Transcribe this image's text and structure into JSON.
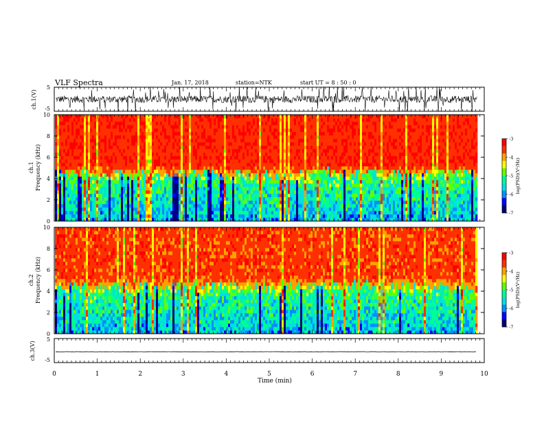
{
  "header": {
    "title": "VLF Spectra",
    "date": "Jan. 17, 2018",
    "station": "station=NTK",
    "start": "start UT = 8 : 50 : 0"
  },
  "colors": {
    "colormap": [
      "#00007a",
      "#0000ff",
      "#0090ff",
      "#00e0e0",
      "#00ff90",
      "#60ff00",
      "#ffff00",
      "#ffa000",
      "#ff3000",
      "#ff0000"
    ],
    "trace": "#000000"
  },
  "chart_data": [
    {
      "type": "line",
      "panel": "ch1-waveform",
      "ylabel": "ch.1(V)",
      "ylim": [
        -5,
        5
      ],
      "yticks": [
        "5",
        "-5"
      ],
      "description_values": {
        "baseline_V": 0.0,
        "noise_amplitude_V": 1.5,
        "spike_max_V": 5
      }
    },
    {
      "type": "heatmap",
      "panel": "ch1-spectrogram",
      "ylabel": "ch.1 Frequency (kHz)",
      "ylim": [
        0,
        10
      ],
      "yticks": [
        "0",
        "2",
        "4",
        "6",
        "8",
        "10"
      ],
      "colorbar": {
        "label": "log(PSD)(V²/Hz)",
        "range": [
          -7,
          -3
        ],
        "ticks": [
          "-3",
          "-4",
          "-5",
          "-6",
          "-7"
        ]
      },
      "levels": {
        "below_4kHz_logPSD": -5.8,
        "above_5kHz_logPSD": -3.5
      }
    },
    {
      "type": "heatmap",
      "panel": "ch2-spectrogram",
      "ylabel": "ch.2 Frequency (kHz)",
      "ylim": [
        0,
        10
      ],
      "yticks": [
        "0",
        "2",
        "4",
        "6",
        "8",
        "10"
      ],
      "colorbar": {
        "label": "log(PSD)(V²/Hz)",
        "range": [
          -7,
          -3
        ],
        "ticks": [
          "-3",
          "-4",
          "-5",
          "-6",
          "-7"
        ]
      },
      "levels": {
        "below_4kHz_logPSD": -5.8,
        "above_5kHz_logPSD": -3.6
      }
    },
    {
      "type": "line",
      "panel": "ch3-waveform",
      "ylabel": "ch.3(V)",
      "ylim": [
        -5,
        5
      ],
      "yticks": [
        "5",
        "-5"
      ],
      "values_note": "constant near -0.5",
      "y_constant": -0.5
    }
  ],
  "xaxis": {
    "label": "Time (min)",
    "xlim": [
      0,
      10
    ],
    "ticks": [
      "0",
      "1",
      "2",
      "3",
      "4",
      "5",
      "6",
      "7",
      "8",
      "9",
      "10"
    ],
    "data_end_min": 9.83
  }
}
